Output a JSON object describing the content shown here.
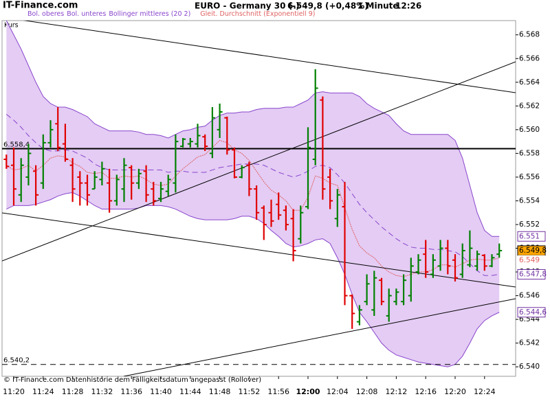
{
  "header": {
    "site": "IT-Finance.com",
    "footer": "© IT-Finance.com Datenhistorie dem Fälligkeitsdatum angepasst (Rollover)"
  },
  "chart_data": {
    "type": "ohlc",
    "title": "EURO - Germany 30 (-)",
    "quote": "6.549,8 (+0,48%)",
    "interval": "1 Minute",
    "time": "12:26",
    "price_name": "Kurs",
    "up_color": "#008000",
    "down_color": "#e00000",
    "x": [
      "11:19",
      "11:20",
      "11:21",
      "11:22",
      "11:23",
      "11:24",
      "11:25",
      "11:26",
      "11:27",
      "11:28",
      "11:29",
      "11:30",
      "11:31",
      "11:32",
      "11:33",
      "11:34",
      "11:35",
      "11:36",
      "11:37",
      "11:38",
      "11:39",
      "11:40",
      "11:41",
      "11:42",
      "11:43",
      "11:44",
      "11:45",
      "11:46",
      "11:47",
      "11:48",
      "11:49",
      "11:50",
      "11:51",
      "11:52",
      "11:53",
      "11:54",
      "11:55",
      "11:56",
      "11:57",
      "11:58",
      "11:59",
      "12:00",
      "12:01",
      "12:02",
      "12:03",
      "12:04",
      "12:05",
      "12:06",
      "12:07",
      "12:08",
      "12:09",
      "12:10",
      "12:11",
      "12:12",
      "12:13",
      "12:14",
      "12:15",
      "12:16",
      "12:17",
      "12:18",
      "12:19",
      "12:20",
      "12:21",
      "12:22",
      "12:23",
      "12:24",
      "12:25",
      "12:26"
    ],
    "open": [
      6557.5,
      6557,
      6554.5,
      6556,
      6556.5,
      6555.5,
      6558.9,
      6560.5,
      6558.8,
      6557,
      6556,
      6555.5,
      6555,
      6555.8,
      6555.5,
      6554,
      6555,
      6556.8,
      6555.5,
      6556.5,
      6555,
      6554.2,
      6554.8,
      6555.5,
      6558.6,
      6558.8,
      6558.8,
      6559.4,
      6558,
      6560,
      6561,
      6558.3,
      6556,
      6557,
      6555,
      6553.4,
      6553,
      6553.7,
      6553.2,
      6552.5,
      6550.8,
      6553.5,
      6557.5,
      6562.5,
      6556,
      6552.5,
      6553.5,
      6546,
      6543.8,
      6545.5,
      6544.8,
      6547.3,
      6544.3,
      6545.5,
      6545.5,
      6546,
      6548,
      6549.5,
      6547.8,
      6548.5,
      6550,
      6549,
      6547.8,
      6548.6,
      6548.5,
      6549.4,
      6548.5,
      6549.5
    ],
    "high": [
      6557.9,
      6558.5,
      6557.6,
      6558.8,
      6557,
      6559.6,
      6560.8,
      6561.9,
      6560.5,
      6557.6,
      6556.5,
      6556.2,
      6556.5,
      6557.3,
      6556.7,
      6556.2,
      6557.6,
      6557,
      6556.7,
      6557,
      6555.6,
      6555.6,
      6556.2,
      6559.6,
      6559.3,
      6559.3,
      6560.5,
      6559.6,
      6561.9,
      6562.2,
      6561.1,
      6558.5,
      6557,
      6557.3,
      6555.3,
      6553.6,
      6554.1,
      6554.7,
      6553.6,
      6553.3,
      6553.6,
      6560.2,
      6565.1,
      6562.8,
      6556.7,
      6555,
      6555.6,
      6546.1,
      6545.2,
      6547.8,
      6548.1,
      6547.5,
      6546.6,
      6546.6,
      6547.8,
      6549.2,
      6549.5,
      6550.7,
      6549.5,
      6550.7,
      6550.7,
      6549.5,
      6550.4,
      6551.5,
      6549.8,
      6549.5,
      6549.5,
      6550.4
    ],
    "low": [
      6556.7,
      6553.6,
      6553.9,
      6555.3,
      6553.6,
      6555,
      6558.5,
      6558.2,
      6557.3,
      6553.9,
      6553.6,
      6553.6,
      6555,
      6555.3,
      6553,
      6553.6,
      6553.9,
      6554.1,
      6555,
      6553.9,
      6553.6,
      6553.9,
      6554.4,
      6554.7,
      6558.5,
      6558.5,
      6558.5,
      6558.2,
      6557.6,
      6559.3,
      6557.9,
      6555.9,
      6555.9,
      6554.4,
      6552.4,
      6550.7,
      6551.8,
      6552.4,
      6551.5,
      6548.9,
      6550.4,
      6553.3,
      6557,
      6554.1,
      6553.3,
      6551.8,
      6545.2,
      6543.2,
      6543.5,
      6545.2,
      6544.3,
      6545.2,
      6543.8,
      6545.2,
      6545.2,
      6545.5,
      6547.8,
      6547.5,
      6547.5,
      6548.1,
      6547.8,
      6547.2,
      6547.5,
      6548.4,
      6548.1,
      6548.1,
      6548.4,
      6549.2
    ],
    "close": [
      6556.9,
      6555,
      6557,
      6558,
      6554.5,
      6558.9,
      6560,
      6558.5,
      6557.5,
      6555,
      6555.5,
      6554.5,
      6556,
      6556.7,
      6554,
      6555.8,
      6557,
      6555.5,
      6556.3,
      6554.5,
      6554,
      6555,
      6555.8,
      6559,
      6559.2,
      6559,
      6559.5,
      6558.6,
      6561,
      6561.5,
      6558.3,
      6556,
      6556.8,
      6555,
      6553,
      6552,
      6552.3,
      6552.8,
      6552,
      6549.8,
      6553,
      6558.5,
      6563.5,
      6555,
      6554,
      6554.5,
      6546,
      6544.5,
      6544.8,
      6547,
      6547.5,
      6545.5,
      6546,
      6546.3,
      6547.3,
      6548.5,
      6549,
      6548,
      6549,
      6550,
      6548.5,
      6547.5,
      6549.8,
      6550,
      6549.5,
      6548.5,
      6549.2,
      6549.8
    ],
    "band_color": "#8844cc",
    "band_fill": "#e4ccf4",
    "series": [
      {
        "name": "Bol. oberes",
        "role": "upper",
        "color": "#8844cc",
        "values": [
          6569.2,
          6568.0,
          6566.8,
          6565.4,
          6564.0,
          6562.8,
          6562.2,
          6561.9,
          6561.9,
          6561.7,
          6561.4,
          6561.1,
          6560.5,
          6560.2,
          6559.9,
          6559.9,
          6559.9,
          6559.9,
          6559.8,
          6559.6,
          6559.6,
          6559.5,
          6559.3,
          6559.6,
          6559.9,
          6560.0,
          6560.2,
          6560.3,
          6560.8,
          6561.2,
          6561.4,
          6561.4,
          6561.5,
          6561.5,
          6561.7,
          6561.8,
          6561.8,
          6561.8,
          6561.9,
          6561.9,
          6562.2,
          6562.5,
          6563.1,
          6563.2,
          6563.1,
          6563.1,
          6563.1,
          6563.1,
          6562.8,
          6562.2,
          6561.8,
          6561.5,
          6561.2,
          6560.5,
          6559.9,
          6559.6,
          6559.6,
          6559.6,
          6559.6,
          6559.6,
          6559.6,
          6559.1,
          6557.6,
          6555.3,
          6553.0,
          6551.5,
          6551.0,
          6551.0
        ]
      },
      {
        "name": "Bol. unteres",
        "role": "lower",
        "color": "#8844cc",
        "values": [
          6553.3,
          6553.6,
          6553.6,
          6553.6,
          6553.7,
          6553.9,
          6554.1,
          6554.4,
          6554.6,
          6554.7,
          6554.4,
          6554.0,
          6553.6,
          6553.3,
          6553.3,
          6553.3,
          6553.3,
          6553.3,
          6553.4,
          6553.6,
          6553.6,
          6553.6,
          6553.5,
          6553.3,
          6553.0,
          6552.7,
          6552.5,
          6552.4,
          6552.4,
          6552.4,
          6552.4,
          6552.5,
          6552.7,
          6552.7,
          6552.5,
          6552.1,
          6551.5,
          6551.0,
          6550.4,
          6550.1,
          6550.2,
          6550.4,
          6550.7,
          6550.8,
          6550.4,
          6549.2,
          6547.8,
          6546.1,
          6544.6,
          6543.8,
          6542.9,
          6542.0,
          6541.4,
          6541.0,
          6540.8,
          6540.6,
          6540.4,
          6540.3,
          6540.2,
          6540.1,
          6540.0,
          6540.2,
          6540.9,
          6542.0,
          6543.2,
          6543.9,
          6544.3,
          6544.6
        ]
      },
      {
        "name": "Bollinger mittleres (20 2)",
        "role": "middle",
        "color": "#8844cc",
        "values": [
          6561.3,
          6560.8,
          6560.2,
          6559.5,
          6558.9,
          6558.4,
          6558.2,
          6558.2,
          6558.3,
          6558.2,
          6557.9,
          6557.6,
          6557.1,
          6556.8,
          6556.6,
          6556.6,
          6556.6,
          6556.6,
          6556.6,
          6556.6,
          6556.6,
          6556.6,
          6556.4,
          6556.5,
          6556.5,
          6556.4,
          6556.4,
          6556.4,
          6556.6,
          6556.8,
          6556.9,
          6557.0,
          6557.1,
          6557.1,
          6557.1,
          6557.0,
          6556.7,
          6556.4,
          6556.2,
          6556.0,
          6556.2,
          6556.5,
          6556.9,
          6557.0,
          6556.8,
          6556.2,
          6555.5,
          6554.6,
          6553.7,
          6553.0,
          6552.4,
          6551.8,
          6551.3,
          6550.8,
          6550.4,
          6550.1,
          6550.0,
          6550.0,
          6549.9,
          6549.9,
          6549.8,
          6549.7,
          6549.3,
          6548.7,
          6548.1,
          6547.7,
          6547.7,
          6547.8
        ]
      },
      {
        "name": "Gleit. Durchschnitt (Exponentiell 9)",
        "role": "ema",
        "color": "#e06060",
        "values": [
          6557.0,
          6556.6,
          6556.7,
          6557.0,
          6556.5,
          6557.0,
          6557.6,
          6557.8,
          6557.7,
          6557.2,
          6556.9,
          6556.4,
          6556.3,
          6556.4,
          6555.9,
          6555.9,
          6556.1,
          6556.0,
          6556.1,
          6555.8,
          6555.4,
          6555.3,
          6555.4,
          6556.1,
          6556.7,
          6557.2,
          6557.7,
          6557.9,
          6558.5,
          6559.1,
          6558.9,
          6558.3,
          6558.0,
          6557.4,
          6556.5,
          6555.6,
          6554.9,
          6554.5,
          6554.0,
          6553.2,
          6553.2,
          6554.3,
          6556.1,
          6555.9,
          6555.5,
          6555.3,
          6553.4,
          6551.6,
          6550.2,
          6549.6,
          6549.2,
          6548.5,
          6548.0,
          6547.7,
          6547.6,
          6547.8,
          6548.0,
          6548.0,
          6548.2,
          6548.6,
          6548.6,
          6548.4,
          6548.7,
          6549.0,
          6549.1,
          6549.0,
          6549.0,
          6549.2
        ]
      }
    ],
    "ylim": [
      6539.2,
      6569.2
    ],
    "yticks": [
      {
        "value": 6540,
        "label": "6.540"
      },
      {
        "value": 6542,
        "label": "6.542"
      },
      {
        "value": 6544,
        "label": "6.544"
      },
      {
        "value": 6546,
        "label": "6.546"
      },
      {
        "value": 6548,
        "label": "6.548"
      },
      {
        "value": 6550,
        "label": "6.550"
      },
      {
        "value": 6552,
        "label": "6.552"
      },
      {
        "value": 6554,
        "label": "6.554"
      },
      {
        "value": 6556,
        "label": "6.556"
      },
      {
        "value": 6558,
        "label": "6.558"
      },
      {
        "value": 6560,
        "label": "6.560"
      },
      {
        "value": 6562,
        "label": "6.562"
      },
      {
        "value": 6564,
        "label": "6.564"
      },
      {
        "value": 6566,
        "label": "6.566"
      },
      {
        "value": 6568,
        "label": "6.568"
      }
    ],
    "xticks": [
      "11:20",
      "11:24",
      "11:28",
      "11:32",
      "11:36",
      "11:40",
      "11:44",
      "11:48",
      "11:52",
      "11:56",
      "12:00",
      "12:04",
      "12:08",
      "12:12",
      "12:16",
      "12:20",
      "12:24"
    ],
    "hlines": [
      {
        "value": 6558.4,
        "label": "6.558,4",
        "style": "solid"
      },
      {
        "value": 6540.2,
        "label": "6.540,2",
        "style": "dashed"
      }
    ],
    "price_labels": [
      {
        "value": 6551,
        "label": "6.551",
        "color": "#7030a0",
        "background": "#ffffff",
        "border": true
      },
      {
        "value": 6549.8,
        "label": "6.549,8",
        "color": "#000000",
        "background": "#ffa500",
        "border": true
      },
      {
        "value": 6549,
        "label": "6.549",
        "color": "#e06060",
        "background": "#ffffff",
        "border": false
      },
      {
        "value": 6547.8,
        "label": "6.547,8",
        "color": "#7030a0",
        "background": "#ffffff",
        "border": true
      },
      {
        "value": 6544.6,
        "label": "6.544,6",
        "color": "#7030a0",
        "background": "#ffffff",
        "border": true
      }
    ]
  }
}
